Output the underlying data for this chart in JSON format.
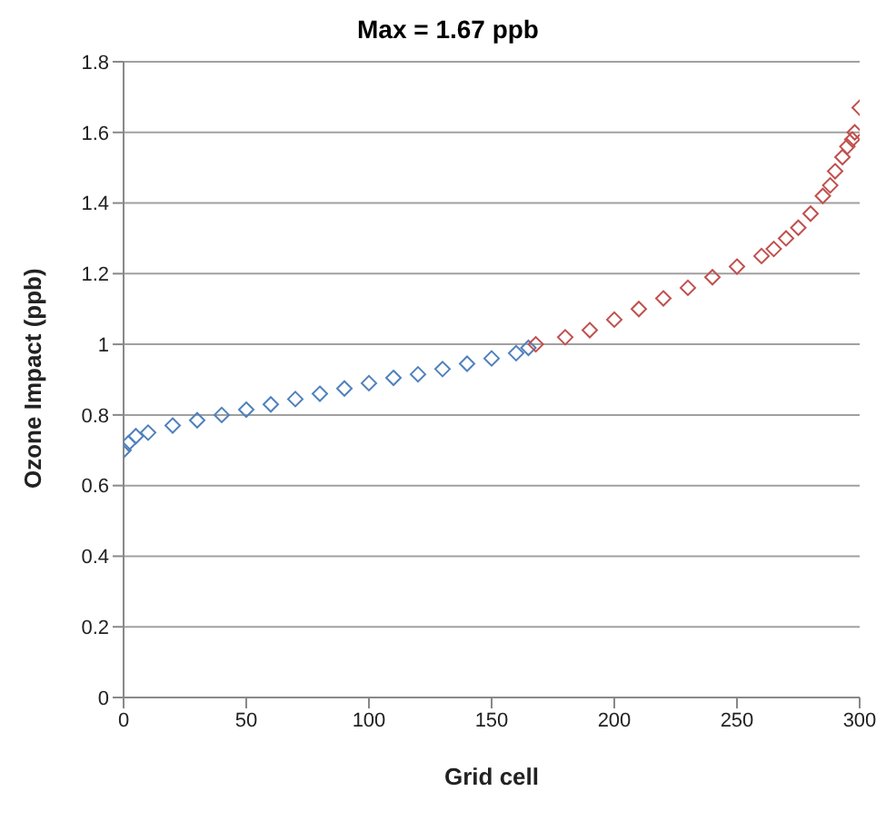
{
  "chart_data": {
    "type": "scatter",
    "title": "Max = 1.67 ppb",
    "xlabel": "Grid cell",
    "ylabel": "Ozone Impact (ppb)",
    "series": [
      {
        "color": "#4f81bd",
        "x": [
          0,
          2,
          5,
          10,
          20,
          30,
          40,
          50,
          60,
          70,
          80,
          90,
          100,
          110,
          120,
          130,
          140,
          150,
          160,
          165
        ],
        "values": [
          0.7,
          0.72,
          0.74,
          0.75,
          0.77,
          0.785,
          0.8,
          0.815,
          0.83,
          0.845,
          0.86,
          0.875,
          0.89,
          0.905,
          0.915,
          0.93,
          0.945,
          0.96,
          0.975,
          0.99
        ]
      },
      {
        "color": "#c0504d",
        "x": [
          168,
          180,
          190,
          200,
          210,
          220,
          230,
          240,
          250,
          260,
          265,
          270,
          275,
          280,
          285,
          288,
          290,
          293,
          295,
          297,
          298,
          300
        ],
        "values": [
          1.0,
          1.02,
          1.04,
          1.07,
          1.1,
          1.13,
          1.16,
          1.19,
          1.22,
          1.25,
          1.27,
          1.3,
          1.33,
          1.37,
          1.42,
          1.45,
          1.49,
          1.53,
          1.56,
          1.58,
          1.6,
          1.67
        ]
      }
    ],
    "xlim": [
      0,
      300
    ],
    "xticks": [
      0,
      50,
      100,
      150,
      200,
      250,
      300
    ],
    "ylim": [
      0,
      1.8
    ],
    "yticks": [
      0,
      0.2,
      0.4,
      0.6,
      0.8,
      1,
      1.2,
      1.4,
      1.6,
      1.8
    ],
    "grid": "y",
    "marker": "diamond",
    "legend": false
  }
}
